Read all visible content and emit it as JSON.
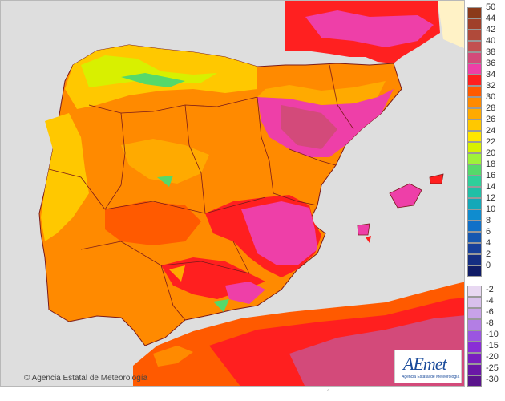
{
  "map": {
    "copyright": "© Agencia Estatal de Meteorología",
    "logo": {
      "name": "AEmet",
      "subtitle": "Agencia Estatal de Meteorología"
    },
    "bottom_mark": "°"
  },
  "legend": {
    "positive": [
      {
        "label": "50",
        "color": "#8b3a1a"
      },
      {
        "label": "44",
        "color": "#a0402a"
      },
      {
        "label": "42",
        "color": "#b04a3a"
      },
      {
        "label": "40",
        "color": "#c25050"
      },
      {
        "label": "38",
        "color": "#d34a7a"
      },
      {
        "label": "36",
        "color": "#ee3fa8"
      },
      {
        "label": "34",
        "color": "#ff1f1f"
      },
      {
        "label": "32",
        "color": "#ff5a00"
      },
      {
        "label": "30",
        "color": "#ff8a00"
      },
      {
        "label": "28",
        "color": "#ffaa00"
      },
      {
        "label": "26",
        "color": "#ffc800"
      },
      {
        "label": "24",
        "color": "#ffe600"
      },
      {
        "label": "22",
        "color": "#d8f000"
      },
      {
        "label": "20",
        "color": "#9ef23a"
      },
      {
        "label": "18",
        "color": "#55d96a"
      },
      {
        "label": "16",
        "color": "#2fcf9a"
      },
      {
        "label": "14",
        "color": "#20bfa6"
      },
      {
        "label": "12",
        "color": "#14a8b8"
      },
      {
        "label": "10",
        "color": "#0f8ccf"
      },
      {
        "label": "8",
        "color": "#1070c8"
      },
      {
        "label": "6",
        "color": "#1658b0"
      },
      {
        "label": "4",
        "color": "#18409a"
      },
      {
        "label": "2",
        "color": "#152e82"
      },
      {
        "label": "0",
        "color": "#101c66"
      }
    ],
    "negative": [
      {
        "label": "-2",
        "color": "#e8d8f2"
      },
      {
        "label": "-4",
        "color": "#d8c0ec"
      },
      {
        "label": "-6",
        "color": "#c8a2e8"
      },
      {
        "label": "-8",
        "color": "#b37ee4"
      },
      {
        "label": "-10",
        "color": "#9b55e0"
      },
      {
        "label": "-15",
        "color": "#8a2ed6"
      },
      {
        "label": "-20",
        "color": "#7a1fbf"
      },
      {
        "label": "-25",
        "color": "#6a18a6"
      },
      {
        "label": "-30",
        "color": "#5a148c"
      }
    ]
  }
}
